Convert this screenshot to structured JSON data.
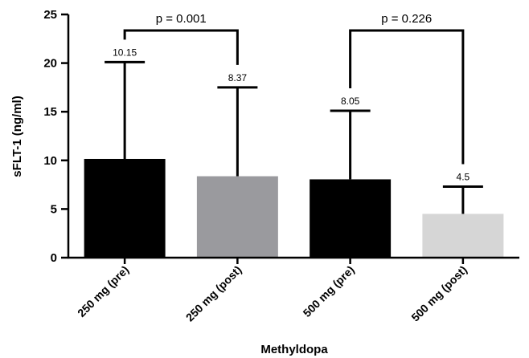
{
  "chart_data": {
    "type": "bar",
    "title": "",
    "xlabel": "Methyldopa",
    "ylabel": "sFLT-1 (ng/ml)",
    "ylim": [
      0,
      25
    ],
    "yticks": [
      "0",
      "5",
      "10",
      "15",
      "20",
      "25"
    ],
    "grid": false,
    "categories": [
      "250 mg (pre)",
      "250 mg (post)",
      "500 mg (pre)",
      "500 mg (post)"
    ],
    "values": [
      10.15,
      8.37,
      8.05,
      4.5
    ],
    "error_upper": [
      20.1,
      17.5,
      15.1,
      7.3
    ],
    "data_labels": [
      "10.15",
      "8.37",
      "8.05",
      "4.5"
    ],
    "bar_colors": [
      "#000000",
      "#9a9a9e",
      "#000000",
      "#d6d6d6"
    ],
    "comparisons": [
      {
        "from": 0,
        "to": 1,
        "label": "p = 0.001"
      },
      {
        "from": 2,
        "to": 3,
        "label": "p = 0.226"
      }
    ]
  }
}
